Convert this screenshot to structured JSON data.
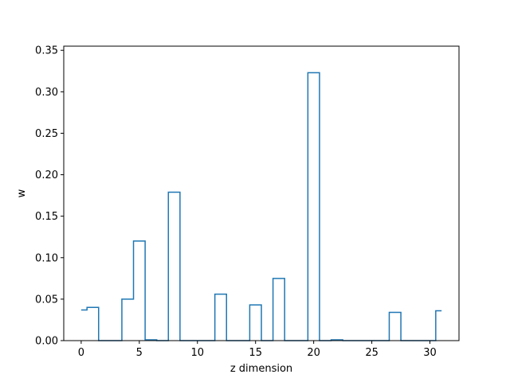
{
  "chart_data": {
    "type": "step",
    "title": "",
    "xlabel": "z dimension",
    "ylabel": "w",
    "xlim": [
      -1.5,
      32.5
    ],
    "ylim": [
      0.0,
      0.355
    ],
    "x_ticks": [
      0,
      5,
      10,
      15,
      20,
      25,
      30
    ],
    "y_ticks": [
      0.0,
      0.05,
      0.1,
      0.15,
      0.2,
      0.25,
      0.3,
      0.35
    ],
    "y_tick_labels": [
      "0.00",
      "0.05",
      "0.10",
      "0.15",
      "0.20",
      "0.25",
      "0.30",
      "0.35"
    ],
    "x_tick_labels": [
      "0",
      "5",
      "10",
      "15",
      "20",
      "25",
      "30"
    ],
    "grid": false,
    "series": [
      {
        "color": "#1f77b4",
        "x": [
          0,
          1,
          2,
          3,
          4,
          5,
          6,
          7,
          8,
          9,
          10,
          11,
          12,
          13,
          14,
          15,
          16,
          17,
          18,
          19,
          20,
          21,
          22,
          23,
          24,
          25,
          26,
          27,
          28,
          29,
          30,
          31
        ],
        "values": [
          0.037,
          0.04,
          0.0,
          0.0,
          0.05,
          0.12,
          0.001,
          0.0,
          0.179,
          0.0,
          0.0,
          0.0,
          0.056,
          0.0,
          0.0,
          0.043,
          0.0,
          0.075,
          0.0,
          0.0,
          0.323,
          0.0,
          0.001,
          0.0,
          0.0,
          0.0,
          0.0,
          0.034,
          0.0,
          0.0,
          0.0,
          0.036
        ]
      }
    ]
  }
}
